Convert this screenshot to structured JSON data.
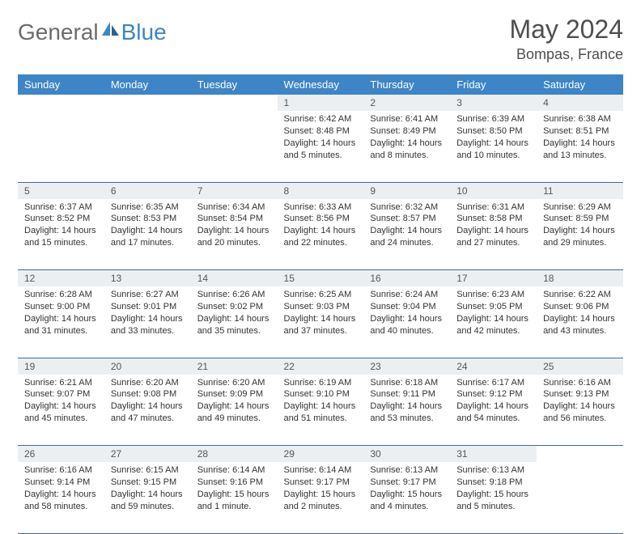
{
  "brand": {
    "part1": "General",
    "part2": "Blue"
  },
  "title": "May 2024",
  "location": "Bompas, France",
  "colors": {
    "header_bg": "#3d85c6",
    "header_text": "#ffffff",
    "daynum_bg": "#eceff1",
    "border": "#3d6b99",
    "logo_gray": "#6b6b6b",
    "logo_blue": "#3d85c6"
  },
  "weekdays": [
    "Sunday",
    "Monday",
    "Tuesday",
    "Wednesday",
    "Thursday",
    "Friday",
    "Saturday"
  ],
  "weeks": [
    [
      {
        "n": "",
        "sr": "",
        "ss": "",
        "dl": ""
      },
      {
        "n": "",
        "sr": "",
        "ss": "",
        "dl": ""
      },
      {
        "n": "",
        "sr": "",
        "ss": "",
        "dl": ""
      },
      {
        "n": "1",
        "sr": "Sunrise: 6:42 AM",
        "ss": "Sunset: 8:48 PM",
        "dl": "Daylight: 14 hours and 5 minutes."
      },
      {
        "n": "2",
        "sr": "Sunrise: 6:41 AM",
        "ss": "Sunset: 8:49 PM",
        "dl": "Daylight: 14 hours and 8 minutes."
      },
      {
        "n": "3",
        "sr": "Sunrise: 6:39 AM",
        "ss": "Sunset: 8:50 PM",
        "dl": "Daylight: 14 hours and 10 minutes."
      },
      {
        "n": "4",
        "sr": "Sunrise: 6:38 AM",
        "ss": "Sunset: 8:51 PM",
        "dl": "Daylight: 14 hours and 13 minutes."
      }
    ],
    [
      {
        "n": "5",
        "sr": "Sunrise: 6:37 AM",
        "ss": "Sunset: 8:52 PM",
        "dl": "Daylight: 14 hours and 15 minutes."
      },
      {
        "n": "6",
        "sr": "Sunrise: 6:35 AM",
        "ss": "Sunset: 8:53 PM",
        "dl": "Daylight: 14 hours and 17 minutes."
      },
      {
        "n": "7",
        "sr": "Sunrise: 6:34 AM",
        "ss": "Sunset: 8:54 PM",
        "dl": "Daylight: 14 hours and 20 minutes."
      },
      {
        "n": "8",
        "sr": "Sunrise: 6:33 AM",
        "ss": "Sunset: 8:56 PM",
        "dl": "Daylight: 14 hours and 22 minutes."
      },
      {
        "n": "9",
        "sr": "Sunrise: 6:32 AM",
        "ss": "Sunset: 8:57 PM",
        "dl": "Daylight: 14 hours and 24 minutes."
      },
      {
        "n": "10",
        "sr": "Sunrise: 6:31 AM",
        "ss": "Sunset: 8:58 PM",
        "dl": "Daylight: 14 hours and 27 minutes."
      },
      {
        "n": "11",
        "sr": "Sunrise: 6:29 AM",
        "ss": "Sunset: 8:59 PM",
        "dl": "Daylight: 14 hours and 29 minutes."
      }
    ],
    [
      {
        "n": "12",
        "sr": "Sunrise: 6:28 AM",
        "ss": "Sunset: 9:00 PM",
        "dl": "Daylight: 14 hours and 31 minutes."
      },
      {
        "n": "13",
        "sr": "Sunrise: 6:27 AM",
        "ss": "Sunset: 9:01 PM",
        "dl": "Daylight: 14 hours and 33 minutes."
      },
      {
        "n": "14",
        "sr": "Sunrise: 6:26 AM",
        "ss": "Sunset: 9:02 PM",
        "dl": "Daylight: 14 hours and 35 minutes."
      },
      {
        "n": "15",
        "sr": "Sunrise: 6:25 AM",
        "ss": "Sunset: 9:03 PM",
        "dl": "Daylight: 14 hours and 37 minutes."
      },
      {
        "n": "16",
        "sr": "Sunrise: 6:24 AM",
        "ss": "Sunset: 9:04 PM",
        "dl": "Daylight: 14 hours and 40 minutes."
      },
      {
        "n": "17",
        "sr": "Sunrise: 6:23 AM",
        "ss": "Sunset: 9:05 PM",
        "dl": "Daylight: 14 hours and 42 minutes."
      },
      {
        "n": "18",
        "sr": "Sunrise: 6:22 AM",
        "ss": "Sunset: 9:06 PM",
        "dl": "Daylight: 14 hours and 43 minutes."
      }
    ],
    [
      {
        "n": "19",
        "sr": "Sunrise: 6:21 AM",
        "ss": "Sunset: 9:07 PM",
        "dl": "Daylight: 14 hours and 45 minutes."
      },
      {
        "n": "20",
        "sr": "Sunrise: 6:20 AM",
        "ss": "Sunset: 9:08 PM",
        "dl": "Daylight: 14 hours and 47 minutes."
      },
      {
        "n": "21",
        "sr": "Sunrise: 6:20 AM",
        "ss": "Sunset: 9:09 PM",
        "dl": "Daylight: 14 hours and 49 minutes."
      },
      {
        "n": "22",
        "sr": "Sunrise: 6:19 AM",
        "ss": "Sunset: 9:10 PM",
        "dl": "Daylight: 14 hours and 51 minutes."
      },
      {
        "n": "23",
        "sr": "Sunrise: 6:18 AM",
        "ss": "Sunset: 9:11 PM",
        "dl": "Daylight: 14 hours and 53 minutes."
      },
      {
        "n": "24",
        "sr": "Sunrise: 6:17 AM",
        "ss": "Sunset: 9:12 PM",
        "dl": "Daylight: 14 hours and 54 minutes."
      },
      {
        "n": "25",
        "sr": "Sunrise: 6:16 AM",
        "ss": "Sunset: 9:13 PM",
        "dl": "Daylight: 14 hours and 56 minutes."
      }
    ],
    [
      {
        "n": "26",
        "sr": "Sunrise: 6:16 AM",
        "ss": "Sunset: 9:14 PM",
        "dl": "Daylight: 14 hours and 58 minutes."
      },
      {
        "n": "27",
        "sr": "Sunrise: 6:15 AM",
        "ss": "Sunset: 9:15 PM",
        "dl": "Daylight: 14 hours and 59 minutes."
      },
      {
        "n": "28",
        "sr": "Sunrise: 6:14 AM",
        "ss": "Sunset: 9:16 PM",
        "dl": "Daylight: 15 hours and 1 minute."
      },
      {
        "n": "29",
        "sr": "Sunrise: 6:14 AM",
        "ss": "Sunset: 9:17 PM",
        "dl": "Daylight: 15 hours and 2 minutes."
      },
      {
        "n": "30",
        "sr": "Sunrise: 6:13 AM",
        "ss": "Sunset: 9:17 PM",
        "dl": "Daylight: 15 hours and 4 minutes."
      },
      {
        "n": "31",
        "sr": "Sunrise: 6:13 AM",
        "ss": "Sunset: 9:18 PM",
        "dl": "Daylight: 15 hours and 5 minutes."
      },
      {
        "n": "",
        "sr": "",
        "ss": "",
        "dl": ""
      }
    ]
  ]
}
